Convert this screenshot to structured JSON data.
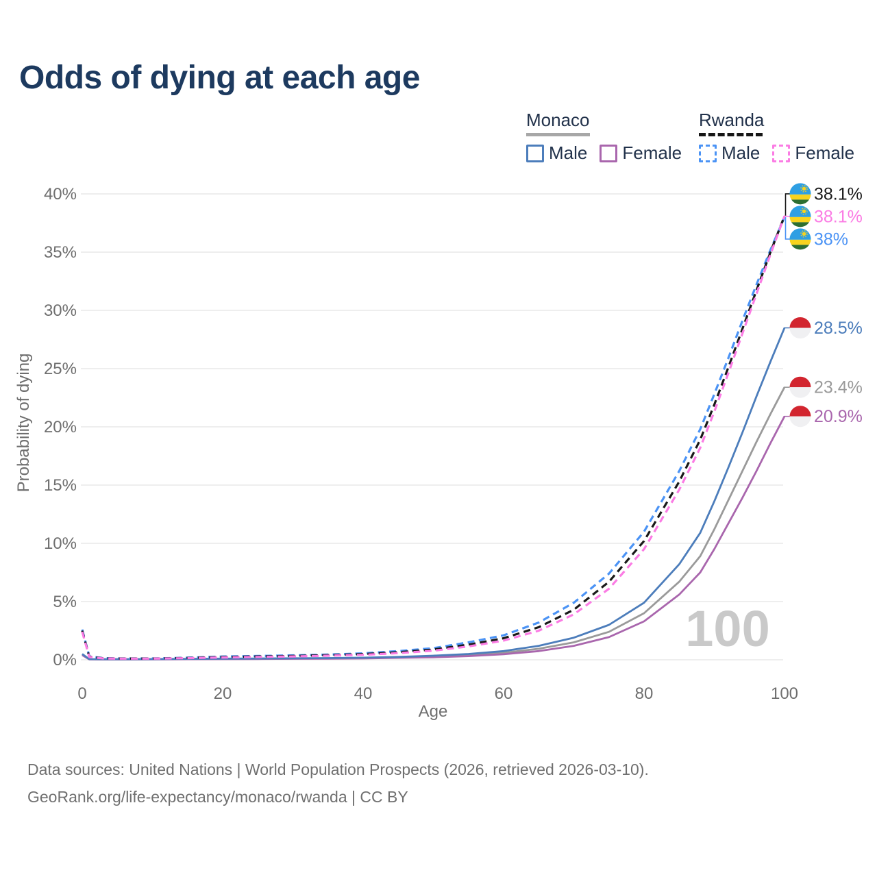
{
  "title": "Odds of dying at each age",
  "legend": {
    "monaco": {
      "label": "Monaco",
      "male": "Male",
      "female": "Female"
    },
    "rwanda": {
      "label": "Rwanda",
      "male": "Male",
      "female": "Female"
    }
  },
  "footer": {
    "line1": "Data sources: United Nations | World Population Prospects (2026, retrieved 2026-03-10).",
    "line2": "GeoRank.org/life-expectancy/monaco/rwanda | CC BY"
  },
  "colors": {
    "title_navy": "#1d3a5f",
    "grid": "#e8e8e8",
    "tick_text": "#6e6e6e",
    "watermark_gray": "#c9c9c9",
    "monaco_underline": "#a7a7a7",
    "rwanda_underline": "#161616"
  },
  "chart_data": {
    "type": "line",
    "title": "Odds of dying at each age",
    "xlabel": "Age",
    "ylabel": "Probability of dying",
    "xlim": [
      0,
      100
    ],
    "ylim": [
      0,
      40
    ],
    "grid": true,
    "watermark": "100",
    "x_ticks": [
      0,
      20,
      40,
      60,
      80,
      100
    ],
    "y_ticks": [
      {
        "value": 0,
        "label": "0%"
      },
      {
        "value": 5,
        "label": "5%"
      },
      {
        "value": 10,
        "label": "10%"
      },
      {
        "value": 15,
        "label": "15%"
      },
      {
        "value": 20,
        "label": "20%"
      },
      {
        "value": 25,
        "label": "25%"
      },
      {
        "value": 30,
        "label": "30%"
      },
      {
        "value": 35,
        "label": "35%"
      },
      {
        "value": 40,
        "label": "40%"
      }
    ],
    "x": [
      0,
      1,
      3,
      5,
      10,
      15,
      20,
      25,
      30,
      35,
      40,
      45,
      50,
      55,
      60,
      65,
      70,
      75,
      80,
      85,
      88,
      90,
      92,
      94,
      96,
      98,
      100
    ],
    "series": [
      {
        "id": "rwanda",
        "name": "Rwanda",
        "country": "Rwanda",
        "style": "dashed",
        "color": "#191919",
        "end_label": "38.1%",
        "values": [
          2.5,
          0.27,
          0.13,
          0.11,
          0.11,
          0.16,
          0.24,
          0.29,
          0.33,
          0.4,
          0.49,
          0.65,
          0.88,
          1.3,
          1.85,
          2.8,
          4.3,
          6.7,
          10.2,
          15.3,
          18.9,
          21.9,
          25.1,
          28.4,
          31.7,
          35.0,
          38.1
        ]
      },
      {
        "id": "rwanda-female",
        "name": "Rwanda Female",
        "country": "Rwanda",
        "sex": "Female",
        "style": "dashed",
        "color": "#fb7ce4",
        "end_label": "38.1%",
        "values": [
          2.4,
          0.24,
          0.12,
          0.1,
          0.1,
          0.14,
          0.2,
          0.25,
          0.29,
          0.35,
          0.43,
          0.57,
          0.78,
          1.15,
          1.65,
          2.5,
          3.9,
          6.1,
          9.5,
          14.6,
          18.2,
          21.3,
          24.6,
          28.0,
          31.4,
          34.8,
          38.1
        ]
      },
      {
        "id": "rwanda-male",
        "name": "Rwanda Male",
        "country": "Rwanda",
        "sex": "Male",
        "style": "dashed",
        "color": "#4b93f5",
        "end_label": "38%",
        "values": [
          2.6,
          0.3,
          0.15,
          0.12,
          0.12,
          0.18,
          0.28,
          0.33,
          0.38,
          0.45,
          0.55,
          0.75,
          1.0,
          1.5,
          2.1,
          3.2,
          4.9,
          7.4,
          11.0,
          16.2,
          19.8,
          22.8,
          25.9,
          29.1,
          32.2,
          35.2,
          38.0
        ]
      },
      {
        "id": "monaco-male",
        "name": "Monaco Male",
        "country": "Monaco",
        "sex": "Male",
        "style": "solid",
        "color": "#4c7dbb",
        "end_label": "28.5%",
        "values": [
          0.5,
          0.06,
          0.05,
          0.05,
          0.06,
          0.08,
          0.1,
          0.11,
          0.13,
          0.15,
          0.18,
          0.25,
          0.35,
          0.5,
          0.75,
          1.2,
          1.9,
          3.0,
          4.9,
          8.2,
          10.9,
          13.6,
          16.5,
          19.5,
          22.6,
          25.6,
          28.5
        ]
      },
      {
        "id": "monaco",
        "name": "Monaco",
        "country": "Monaco",
        "style": "solid",
        "color": "#9a9a9a",
        "end_label": "23.4%",
        "values": [
          0.45,
          0.05,
          0.04,
          0.04,
          0.05,
          0.07,
          0.08,
          0.09,
          0.11,
          0.13,
          0.15,
          0.2,
          0.28,
          0.4,
          0.6,
          0.95,
          1.5,
          2.4,
          4.0,
          6.7,
          8.9,
          11.2,
          13.7,
          16.2,
          18.7,
          21.1,
          23.4
        ]
      },
      {
        "id": "monaco-female",
        "name": "Monaco Female",
        "country": "Monaco",
        "sex": "Female",
        "style": "solid",
        "color": "#a966ad",
        "end_label": "20.9%",
        "values": [
          0.4,
          0.04,
          0.03,
          0.03,
          0.04,
          0.05,
          0.06,
          0.07,
          0.09,
          0.1,
          0.12,
          0.17,
          0.22,
          0.32,
          0.48,
          0.75,
          1.2,
          1.95,
          3.3,
          5.6,
          7.5,
          9.5,
          11.7,
          13.9,
          16.2,
          18.6,
          20.9
        ]
      }
    ],
    "legend_position": "top-right"
  }
}
